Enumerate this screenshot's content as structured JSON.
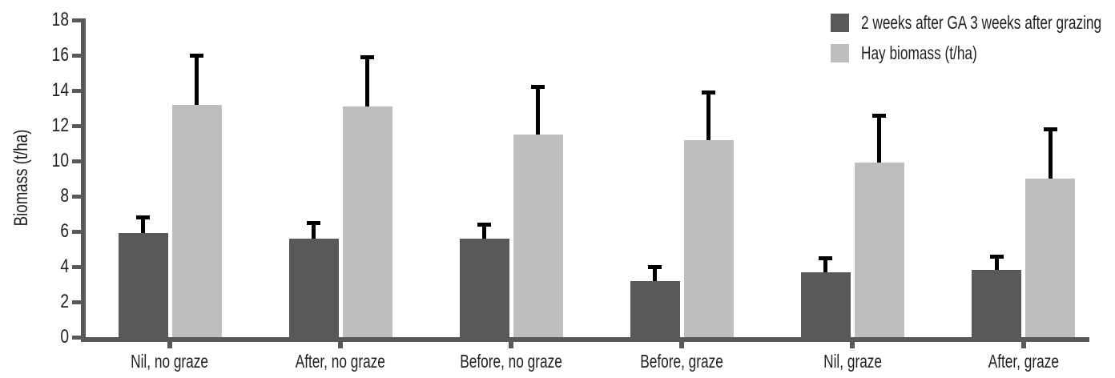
{
  "chart_data": {
    "type": "bar",
    "title": "",
    "ylabel": "Biomass (t/ha)",
    "xlabel": "",
    "ylim": [
      0,
      18
    ],
    "ytick_step": 2,
    "yticks": [
      0,
      2,
      4,
      6,
      8,
      10,
      12,
      14,
      16,
      18
    ],
    "grid": false,
    "legend_position": "top-right",
    "error_bars": "upper only, with top caps",
    "categories": [
      "Nil, no graze",
      "After, no graze",
      "Before, no graze",
      "Before, graze",
      "Nil, graze",
      "After, graze"
    ],
    "series": [
      {
        "name": "2 weeks after GA 3 weeks after grazing",
        "color": "#58595b",
        "values": [
          5.9,
          5.6,
          5.6,
          3.2,
          3.7,
          3.8
        ],
        "errors": [
          1.0,
          1.0,
          0.9,
          0.9,
          0.9,
          0.9
        ]
      },
      {
        "name": "Hay biomass (t/ha)",
        "color": "#bcbec0",
        "values": [
          13.2,
          13.1,
          11.5,
          11.2,
          9.9,
          9.0
        ],
        "errors": [
          2.9,
          2.9,
          2.8,
          2.8,
          2.8,
          2.9
        ]
      }
    ],
    "colors": {
      "axis": "#58595b",
      "error_bar": "#000000",
      "text": "#231f20",
      "background": "#ffffff"
    }
  }
}
